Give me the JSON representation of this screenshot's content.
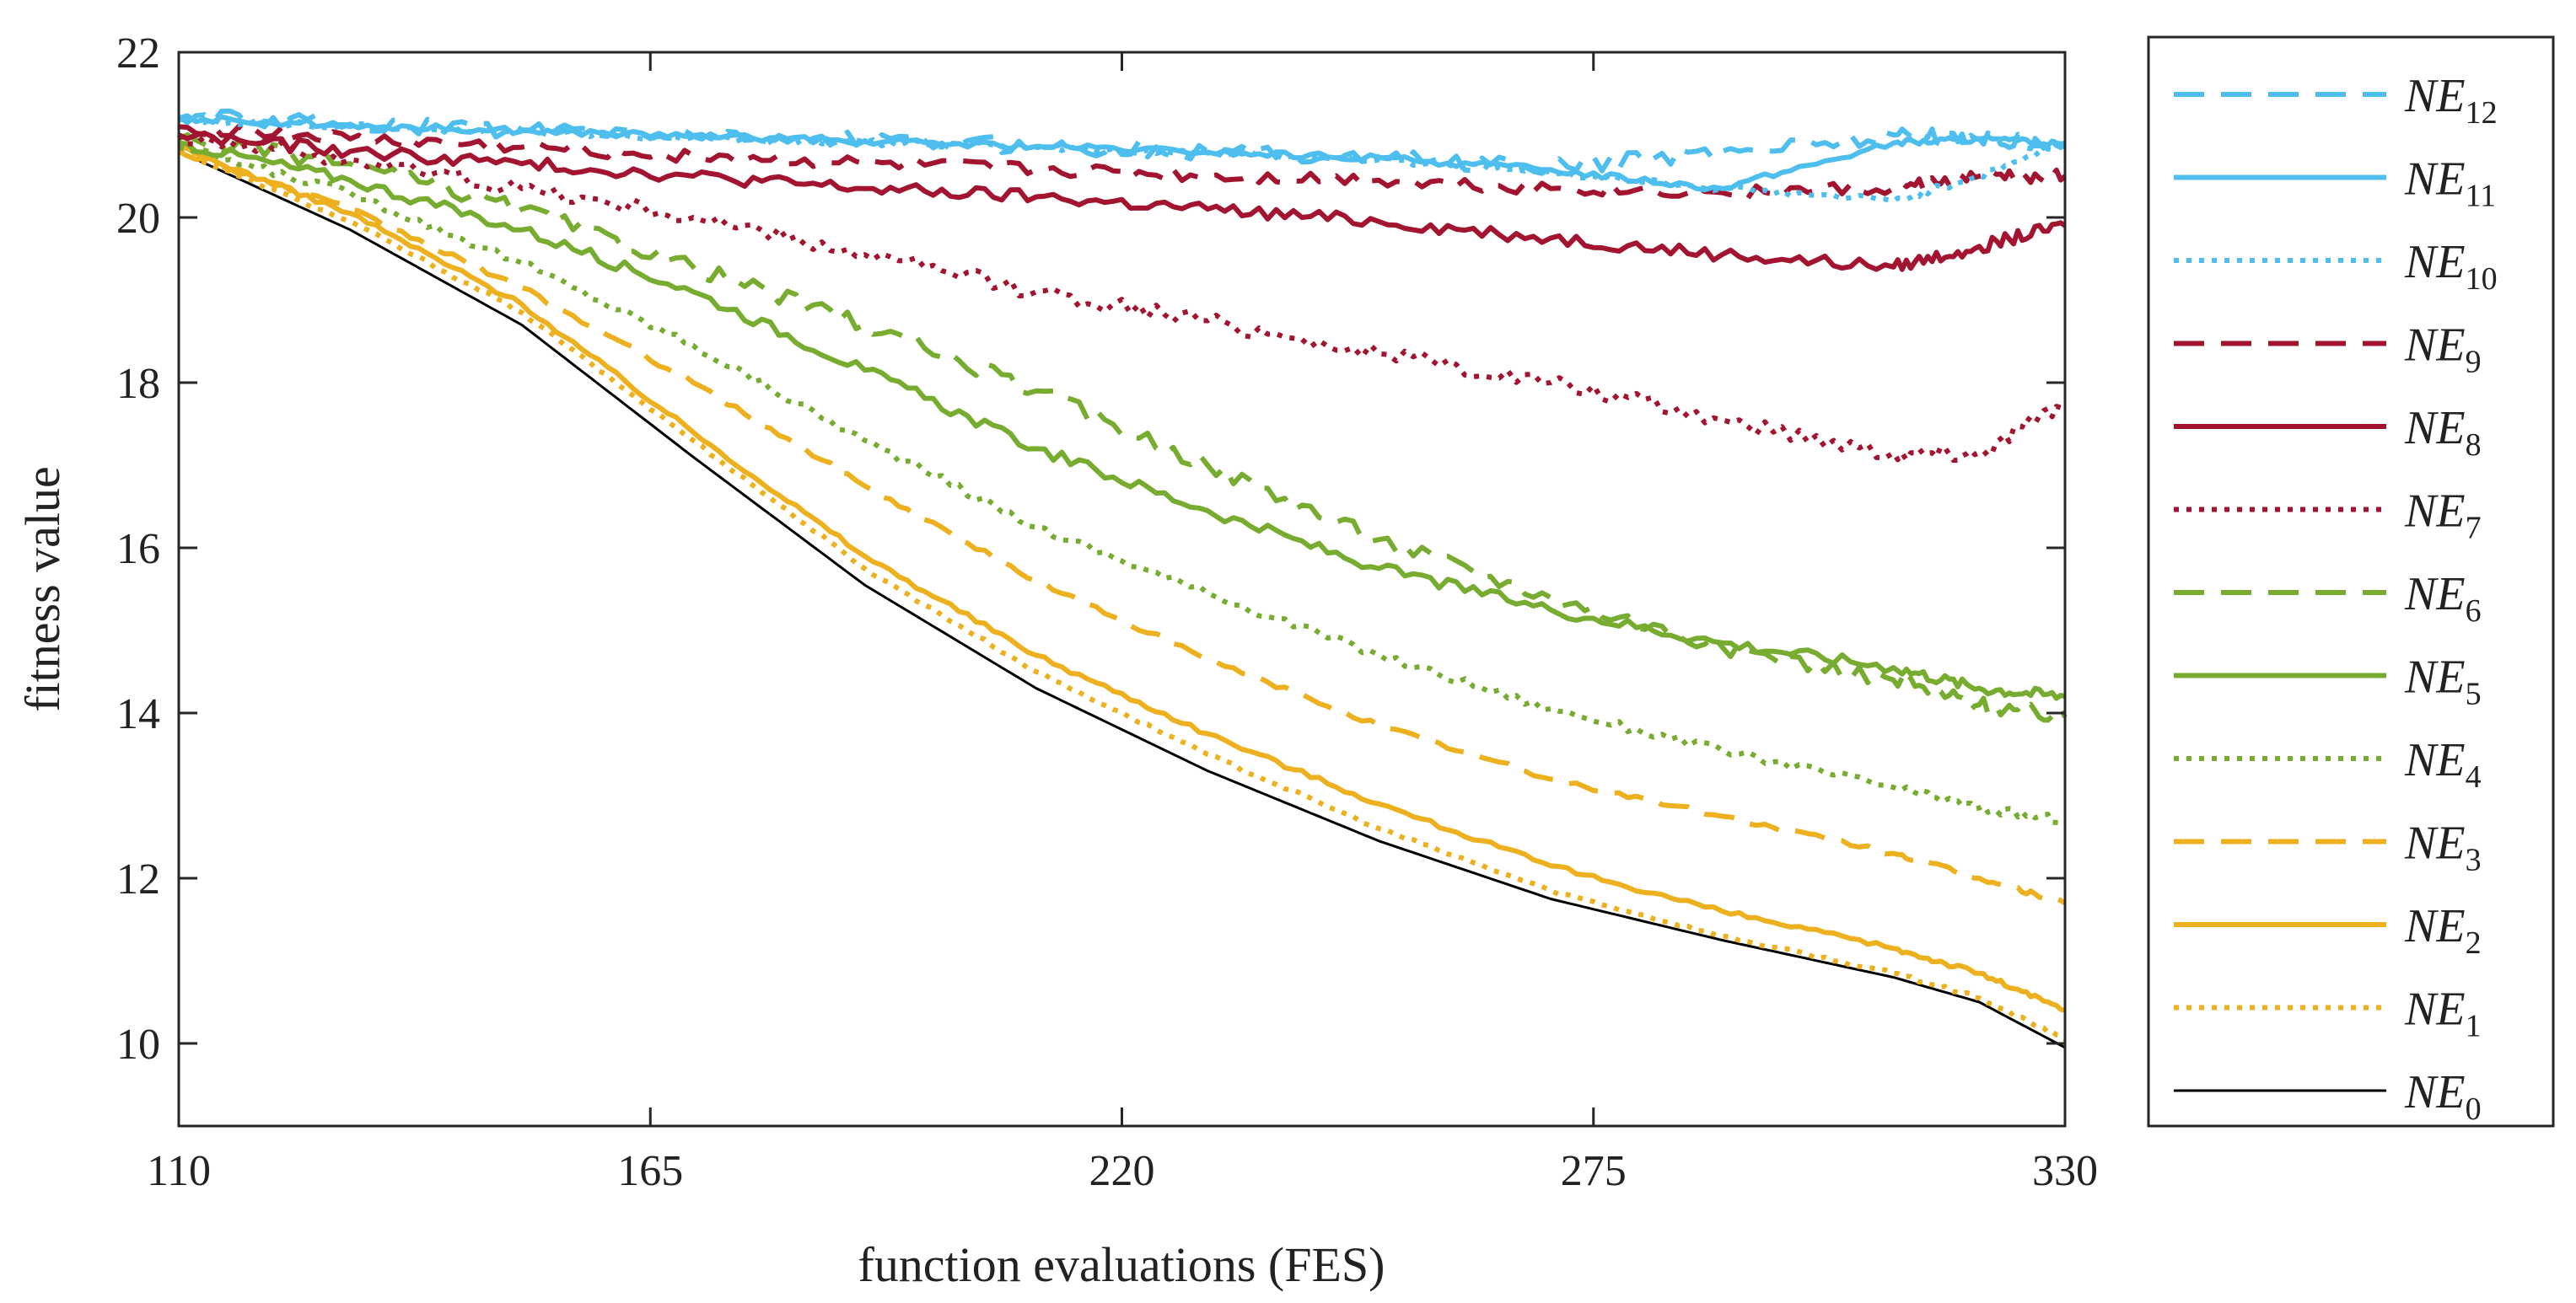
{
  "chart_data": {
    "type": "line",
    "title": "",
    "xlabel": "function evaluations (FES)",
    "ylabel": "fitness value",
    "xlim": [
      110,
      330
    ],
    "ylim": [
      9,
      22
    ],
    "xticks": [
      110,
      165,
      220,
      275,
      330
    ],
    "yticks": [
      10,
      12,
      14,
      16,
      18,
      20,
      22
    ],
    "grid": false,
    "legend_position": "outside-right",
    "x": [
      110,
      130,
      150,
      170,
      190,
      210,
      230,
      250,
      270,
      290,
      310,
      320,
      330
    ],
    "series": [
      {
        "name": "NE12",
        "label_main": "NE",
        "label_sub": "12",
        "color": "#4DBEEE",
        "style": "dashed",
        "noise": 0.1,
        "values": [
          21.22,
          21.13,
          21.06,
          20.99,
          20.93,
          20.87,
          20.8,
          20.73,
          20.6,
          20.8,
          21.0,
          20.95,
          20.9
        ]
      },
      {
        "name": "NE11",
        "label_main": "NE",
        "label_sub": "11",
        "color": "#4DBEEE",
        "style": "solid",
        "noise": 0.04,
        "values": [
          21.2,
          21.12,
          21.05,
          20.98,
          20.92,
          20.86,
          20.79,
          20.72,
          20.58,
          20.35,
          20.9,
          20.95,
          20.88
        ]
      },
      {
        "name": "NE10",
        "label_main": "NE",
        "label_sub": "10",
        "color": "#4DBEEE",
        "style": "dotted",
        "noise": 0.04,
        "values": [
          21.18,
          21.1,
          21.04,
          20.97,
          20.91,
          20.85,
          20.78,
          20.7,
          20.55,
          20.35,
          20.2,
          20.5,
          20.9
        ]
      },
      {
        "name": "NE9",
        "label_main": "NE",
        "label_sub": "9",
        "color": "#A2142F",
        "style": "dashed",
        "noise": 0.08,
        "values": [
          21.1,
          20.95,
          20.85,
          20.75,
          20.65,
          20.58,
          20.5,
          20.45,
          20.35,
          20.3,
          20.35,
          20.5,
          20.5
        ]
      },
      {
        "name": "NE8",
        "label_main": "NE",
        "label_sub": "8",
        "color": "#A2142F",
        "style": "solid",
        "noise": 0.08,
        "values": [
          21.0,
          20.8,
          20.65,
          20.5,
          20.35,
          20.25,
          20.1,
          19.95,
          19.75,
          19.55,
          19.4,
          19.65,
          19.9
        ]
      },
      {
        "name": "NE7",
        "label_main": "NE",
        "label_sub": "7",
        "color": "#A2142F",
        "style": "dotted",
        "noise": 0.1,
        "values": [
          21.0,
          20.7,
          20.35,
          20.0,
          19.55,
          19.1,
          18.75,
          18.35,
          18.0,
          17.55,
          17.15,
          17.15,
          17.75
        ]
      },
      {
        "name": "NE6",
        "label_main": "NE",
        "label_sub": "6",
        "color": "#77AC30",
        "style": "dashed",
        "noise": 0.1,
        "values": [
          20.95,
          20.65,
          20.1,
          19.4,
          18.7,
          17.9,
          17.0,
          16.1,
          15.4,
          14.8,
          14.4,
          14.1,
          13.95
        ]
      },
      {
        "name": "NE5",
        "label_main": "NE",
        "label_sub": "5",
        "color": "#77AC30",
        "style": "solid",
        "noise": 0.07,
        "values": [
          20.9,
          20.45,
          19.85,
          19.1,
          18.15,
          17.2,
          16.45,
          15.75,
          15.25,
          14.85,
          14.55,
          14.3,
          14.2
        ]
      },
      {
        "name": "NE4",
        "label_main": "NE",
        "label_sub": "4",
        "color": "#77AC30",
        "style": "dotted",
        "noise": 0.05,
        "values": [
          20.85,
          20.3,
          19.45,
          18.45,
          17.3,
          16.25,
          15.45,
          14.7,
          14.05,
          13.55,
          13.1,
          12.85,
          12.7
        ]
      },
      {
        "name": "NE3",
        "label_main": "NE",
        "label_sub": "3",
        "color": "#EDB120",
        "style": "dashed",
        "noise": 0.03,
        "values": [
          20.8,
          20.1,
          19.15,
          18.0,
          16.75,
          15.6,
          14.65,
          13.85,
          13.2,
          12.75,
          12.3,
          12.0,
          11.7
        ]
      },
      {
        "name": "NE2",
        "label_main": "NE",
        "label_sub": "2",
        "color": "#EDB120",
        "style": "solid",
        "noise": 0.03,
        "values": [
          20.85,
          20.05,
          18.95,
          17.4,
          15.9,
          14.7,
          13.75,
          12.9,
          12.15,
          11.6,
          11.15,
          10.85,
          10.4
        ]
      },
      {
        "name": "NE1",
        "label_main": "NE",
        "label_sub": "1",
        "color": "#EDB120",
        "style": "dotted",
        "noise": 0.02,
        "values": [
          20.8,
          19.95,
          18.85,
          17.3,
          15.75,
          14.5,
          13.5,
          12.6,
          11.85,
          11.3,
          10.85,
          10.55,
          10.05
        ]
      },
      {
        "name": "NE0",
        "label_main": "NE",
        "label_sub": "0",
        "color": "#000000",
        "style": "solid-thin",
        "noise": 0.0,
        "values": [
          20.8,
          19.85,
          18.7,
          17.1,
          15.55,
          14.3,
          13.3,
          12.45,
          11.75,
          11.25,
          10.8,
          10.5,
          9.95
        ]
      }
    ]
  }
}
